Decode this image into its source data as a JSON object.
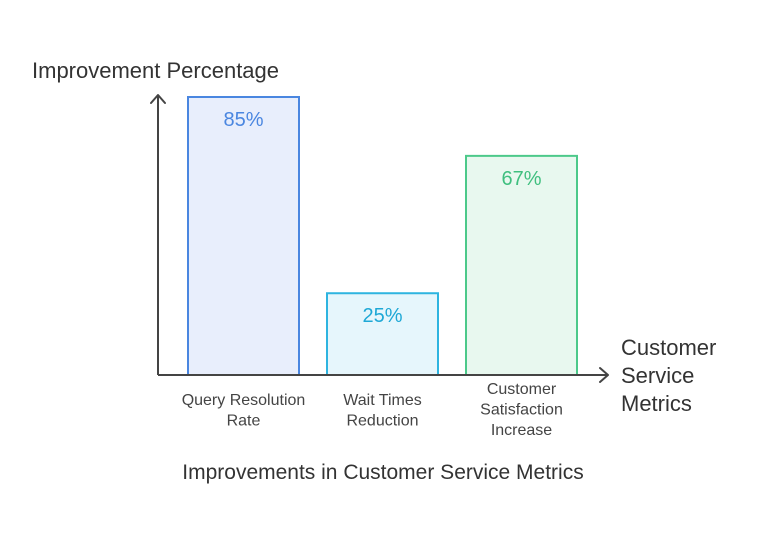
{
  "chart_data": {
    "type": "bar",
    "title": "Improvements in Customer Service Metrics",
    "ylabel": "Improvement Percentage",
    "xlabel": "Customer Service Metrics",
    "ylim": [
      0,
      85
    ],
    "grid": false,
    "categories": [
      "Query Resolution Rate",
      "Wait Times Reduction",
      "Customer Satisfaction Increase"
    ],
    "values": [
      85,
      25,
      67
    ],
    "value_labels": [
      "85%",
      "25%",
      "67%"
    ],
    "colors": [
      {
        "fill": "#e8eefc",
        "stroke": "#4a86e0",
        "text": "#4a86e0"
      },
      {
        "fill": "#e6f6fc",
        "stroke": "#2eb4e0",
        "text": "#1ea8d6"
      },
      {
        "fill": "#e8f8ef",
        "stroke": "#4cc98a",
        "text": "#3fbf7f"
      }
    ]
  }
}
